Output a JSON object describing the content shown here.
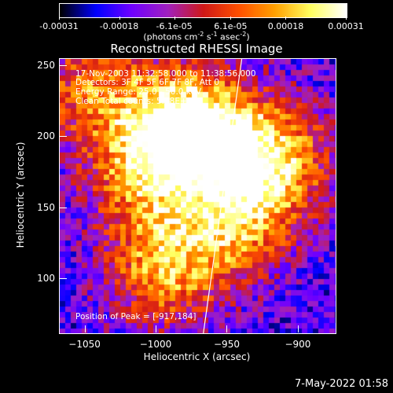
{
  "chart_data": {
    "type": "heatmap",
    "title": "Reconstructed RHESSI Image",
    "xlabel": "Heliocentric X (arcsec)",
    "ylabel": "Heliocentric Y (arcsec)",
    "xlim": [
      -1068,
      -874
    ],
    "ylim": [
      62,
      255
    ],
    "x_ticks": [
      -1050,
      -1000,
      -950,
      -900
    ],
    "y_ticks": [
      100,
      150,
      200,
      250
    ],
    "x_tick_labels": [
      "−1050",
      "−1000",
      "−950",
      "−900"
    ],
    "y_tick_labels": [
      "100",
      "150",
      "200",
      "250"
    ],
    "colorbar": {
      "ticks": [
        -0.00031,
        -0.00018,
        -6.1e-05,
        6.1e-05,
        0.00018,
        0.00031
      ],
      "tick_labels": [
        "-0.00031",
        "-0.00018",
        "-6.1e-05",
        "6.1e-05",
        "0.00018",
        "0.00031"
      ],
      "units_prefix": "(photons cm",
      "units_sup1": "-2",
      "units_mid1": " s",
      "units_sup2": "-1",
      "units_mid2": " asec",
      "units_sup3": "-2",
      "units_suffix": ")",
      "colormap": [
        "#000000",
        "#0000ff",
        "#6f00ff",
        "#a020c0",
        "#d01818",
        "#ff5000",
        "#ffa000",
        "#ffff60",
        "#ffffff"
      ]
    },
    "annotations": {
      "time": "17-Nov-2003 11:32:58.000 to 11:38:56.000",
      "detectors": "Detectors: 3F 4F 5F 6F 7F 8F, Att 0",
      "energy": "Energy Range: 25.0 - 50.0 keV",
      "method": "Clean     Total counts: 5.88E+03",
      "peak": "Position of Peak = [-917,184]"
    },
    "limb_line": {
      "x": [
        -967,
        -940
      ],
      "y": [
        62,
        255
      ]
    },
    "bright_regions": [
      {
        "x": -917,
        "y": 184,
        "level": 1.0
      },
      {
        "x": -985,
        "y": 210,
        "level": 0.95
      },
      {
        "x": -995,
        "y": 108,
        "level": 0.9
      },
      {
        "x": -945,
        "y": 140,
        "level": 0.85
      },
      {
        "x": -1010,
        "y": 175,
        "level": 0.8
      },
      {
        "x": -960,
        "y": 200,
        "level": 0.75
      },
      {
        "x": -1045,
        "y": 235,
        "level": 0.7
      }
    ]
  },
  "timestamp": "7-May-2022 01:58"
}
